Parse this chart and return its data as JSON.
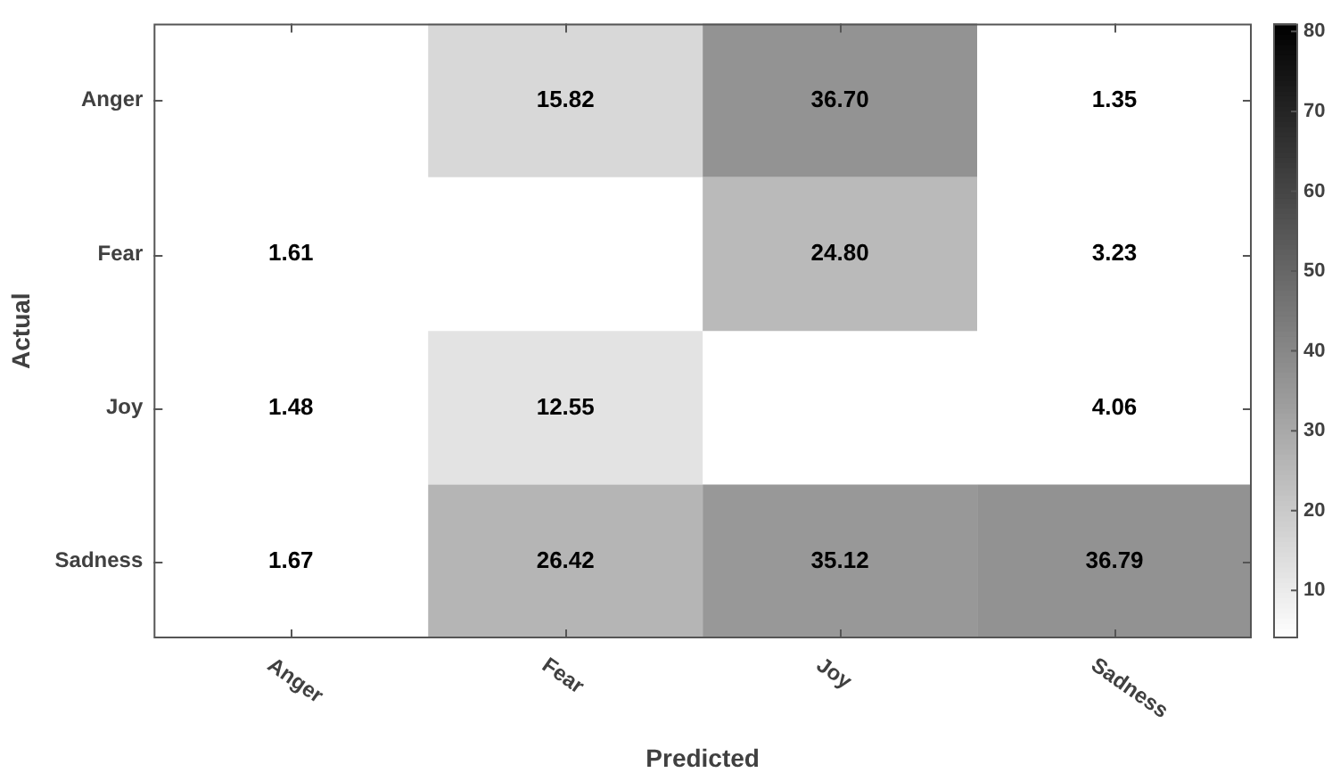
{
  "chart_data": {
    "type": "heatmap",
    "xlabel": "Predicted",
    "ylabel": "Actual",
    "categories": [
      "Anger",
      "Fear",
      "Joy",
      "Sadness"
    ],
    "y_categories": [
      "Anger",
      "Fear",
      "Joy",
      "Sadness"
    ],
    "cells": [
      [
        null,
        15.82,
        36.7,
        1.35
      ],
      [
        1.61,
        null,
        24.8,
        3.23
      ],
      [
        1.48,
        12.55,
        null,
        4.06
      ],
      [
        1.67,
        26.42,
        35.12,
        36.79
      ]
    ],
    "cell_labels": [
      [
        null,
        "15.82",
        "36.70",
        "1.35"
      ],
      [
        "1.61",
        null,
        "24.80",
        "3.23"
      ],
      [
        "1.48",
        "12.55",
        null,
        "4.06"
      ],
      [
        "1.67",
        "26.42",
        "35.12",
        "36.79"
      ]
    ],
    "clim": [
      4,
      81
    ],
    "cticks": [
      10,
      20,
      30,
      40,
      50,
      60,
      70,
      80
    ],
    "data_labels": true,
    "grid": false,
    "legend": false
  }
}
